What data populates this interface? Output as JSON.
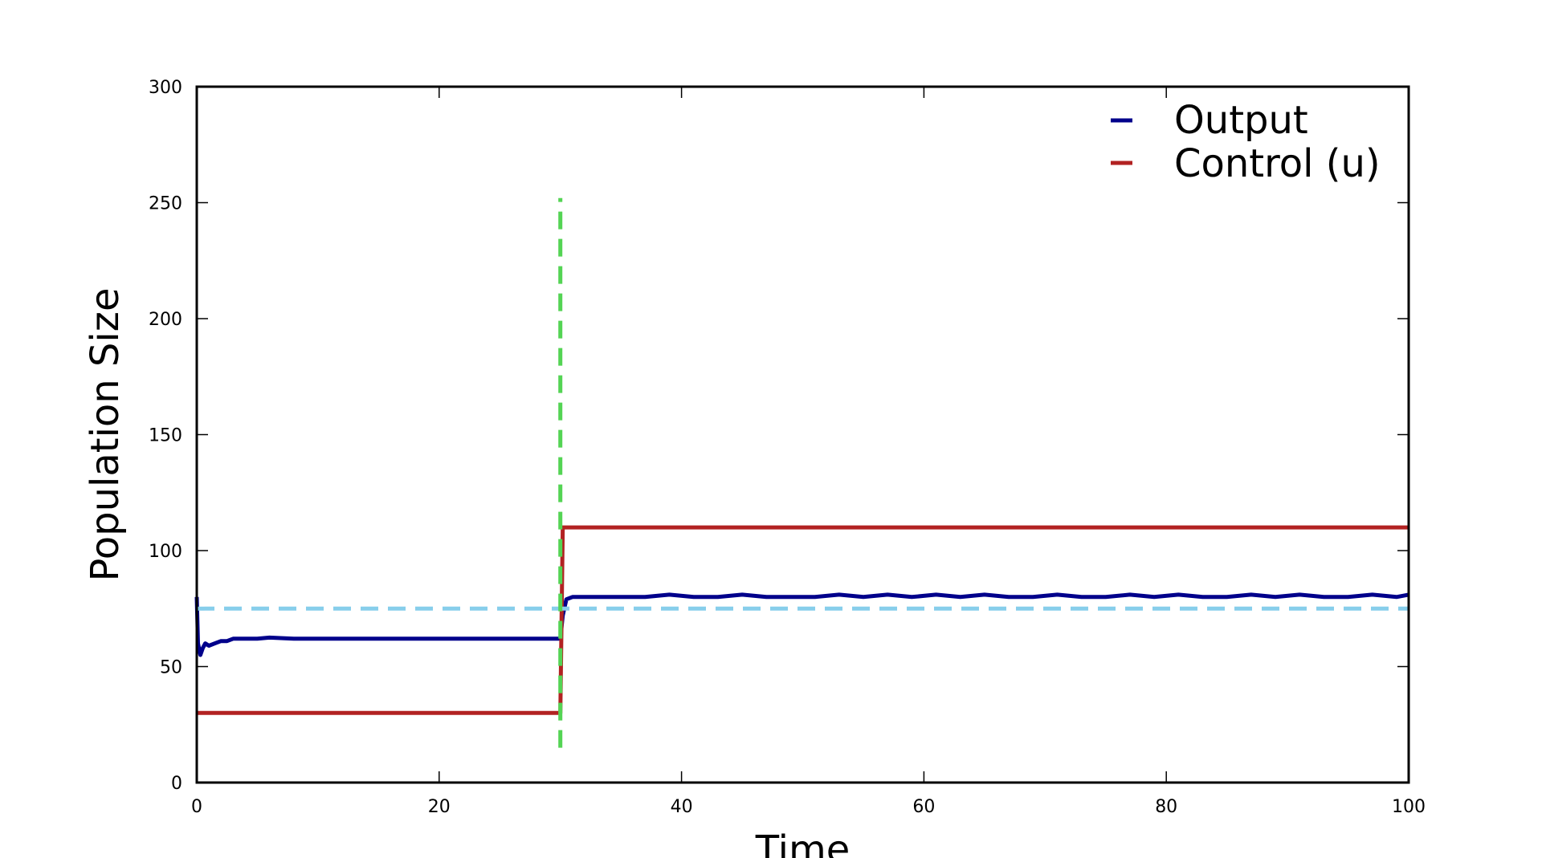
{
  "chart_data": {
    "type": "line",
    "title": "",
    "xlabel": "Time",
    "ylabel": "Population Size",
    "xlim": [
      0,
      100
    ],
    "ylim": [
      0,
      300
    ],
    "xticks": [
      "0",
      "20",
      "40",
      "60",
      "80",
      "100"
    ],
    "yticks": [
      "0",
      "50",
      "100",
      "150",
      "200",
      "250",
      "300"
    ],
    "grid": false,
    "legend_position": "top-right",
    "series": [
      {
        "name": "Output",
        "color": "#00008b",
        "style": "solid",
        "x": [
          0,
          0.1,
          0.3,
          0.5,
          0.7,
          1.0,
          1.5,
          2.0,
          2.5,
          3.0,
          4.0,
          5.0,
          6.0,
          8.0,
          10,
          15,
          20,
          25,
          29.9,
          30.0,
          30.2,
          30.5,
          31,
          33,
          35,
          37,
          39,
          41,
          43,
          45,
          47,
          49,
          51,
          53,
          55,
          57,
          59,
          61,
          63,
          65,
          67,
          69,
          71,
          73,
          75,
          77,
          79,
          81,
          83,
          85,
          87,
          89,
          91,
          93,
          95,
          97,
          99,
          100
        ],
        "y": [
          80,
          60,
          55,
          58,
          60,
          59,
          60,
          61,
          61,
          62,
          62,
          62,
          62.5,
          62,
          62,
          62,
          62,
          62,
          62,
          62,
          72,
          79,
          80,
          80,
          80,
          80,
          81,
          80,
          80,
          81,
          80,
          80,
          80,
          81,
          80,
          81,
          80,
          81,
          80,
          81,
          80,
          80,
          81,
          80,
          80,
          81,
          80,
          81,
          80,
          80,
          81,
          80,
          81,
          80,
          80,
          81,
          80,
          81
        ]
      },
      {
        "name": "Control (u)",
        "color": "#b22222",
        "style": "solid",
        "x": [
          0,
          30,
          30.2,
          100
        ],
        "y": [
          30,
          30,
          110,
          110
        ]
      },
      {
        "color": "#87ceeb",
        "style": "dashed",
        "x": [
          0,
          100
        ],
        "y": [
          75,
          75
        ]
      },
      {
        "color": "#54d454",
        "style": "dashed",
        "x": [
          30,
          30
        ],
        "y": [
          15,
          252
        ]
      },
      {
        "color": "#000000",
        "style": "dashed",
        "x": [
          0,
          100
        ],
        "y": [
          0,
          0
        ]
      }
    ]
  }
}
